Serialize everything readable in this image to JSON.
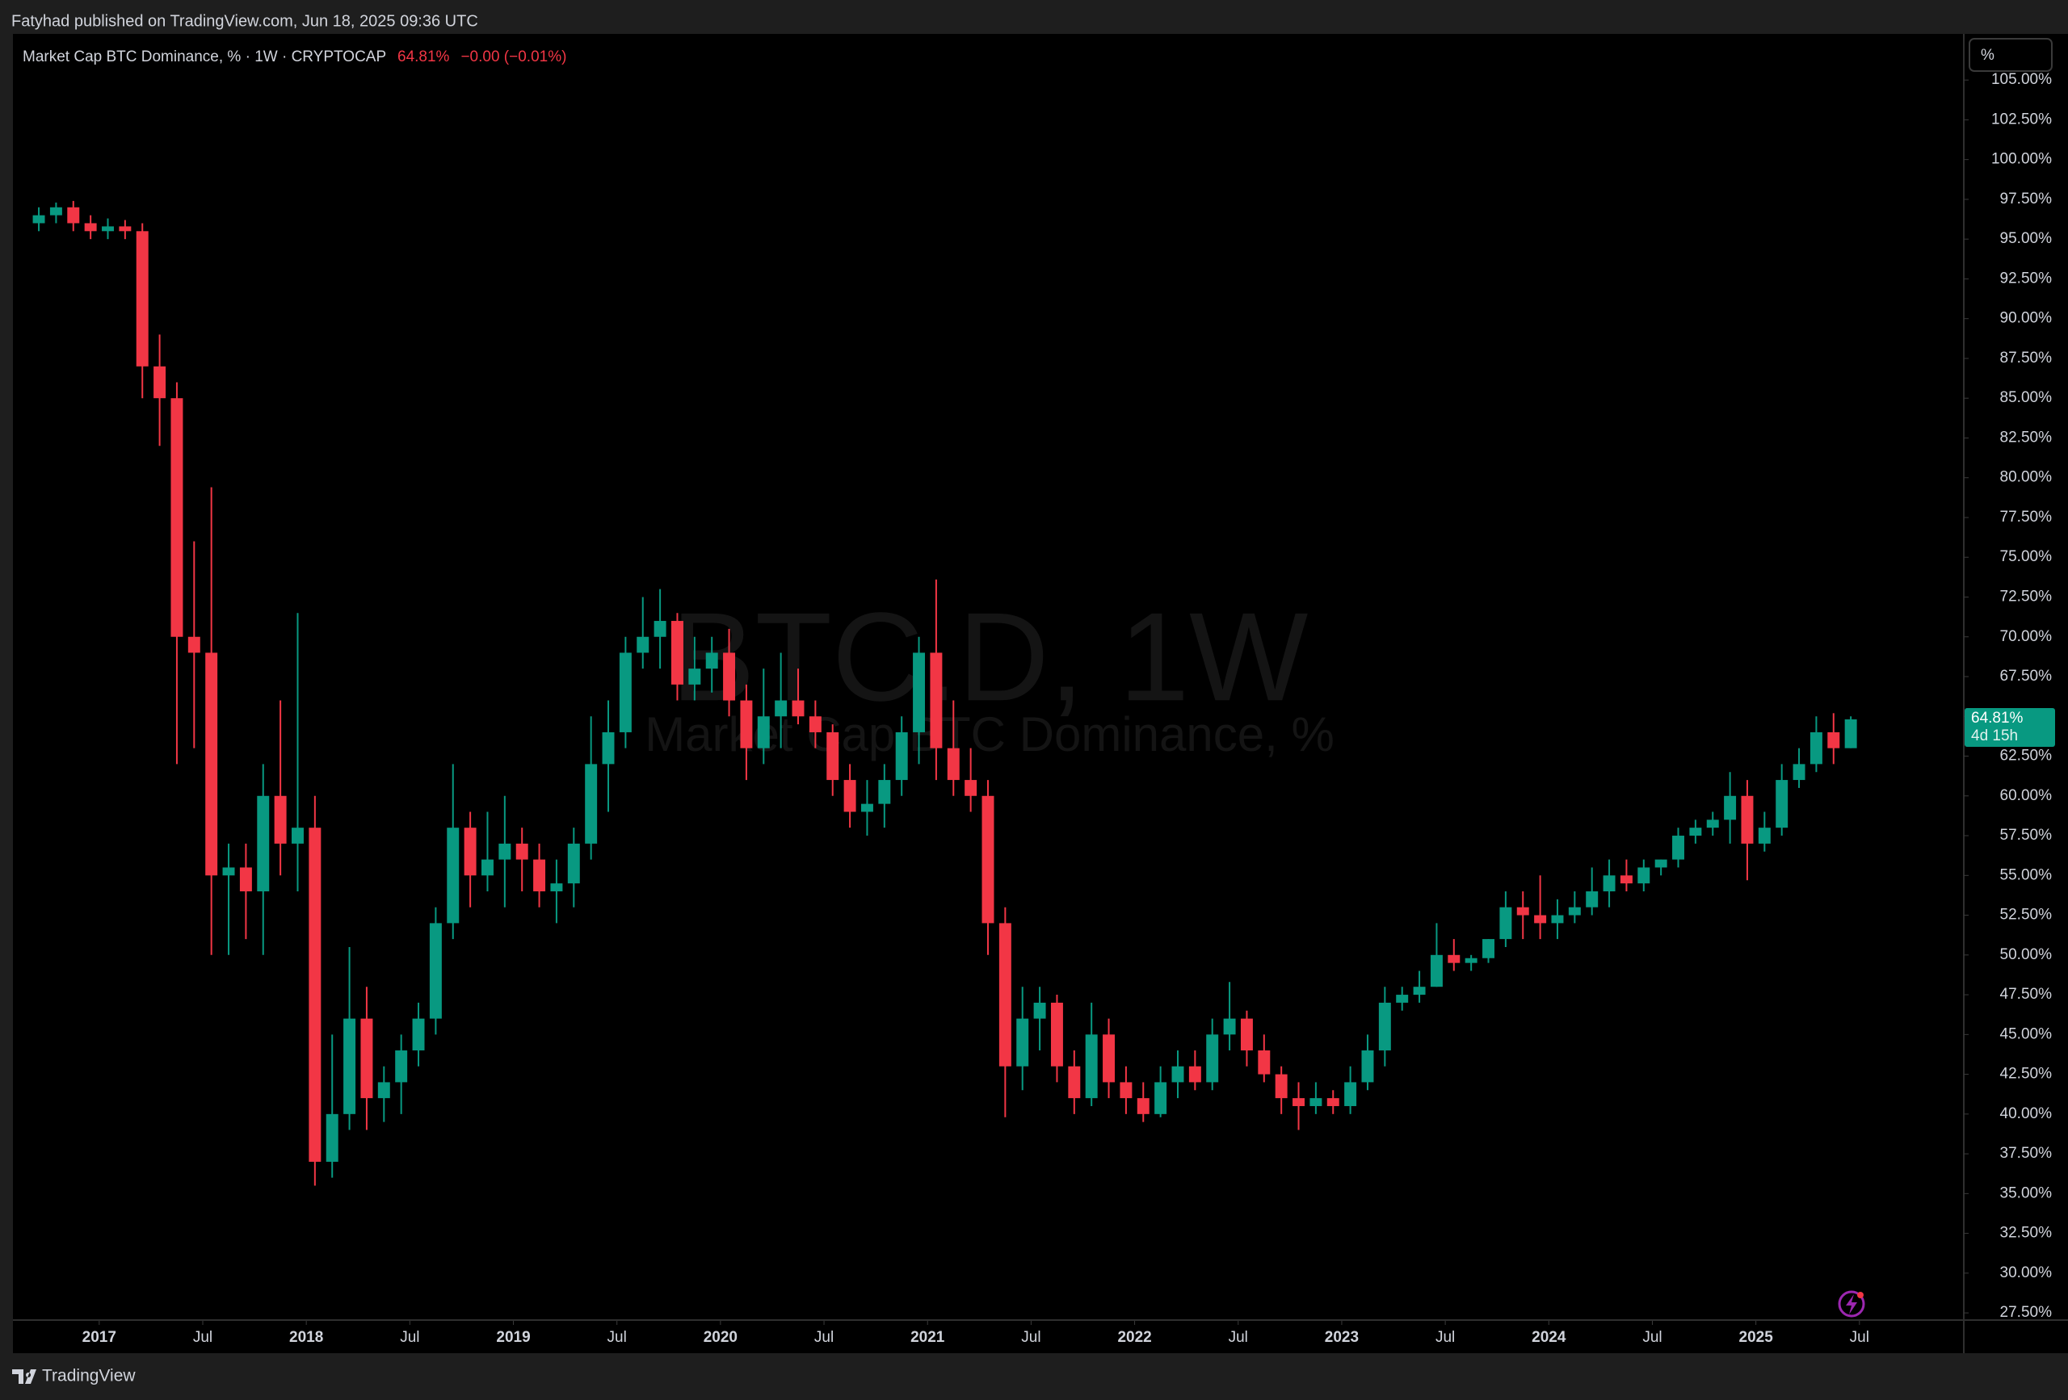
{
  "header": "Fatyhad published on TradingView.com, Jun 18, 2025 09:36 UTC",
  "footer": "TradingView",
  "price_scale_mode": "%",
  "chart_data": {
    "type": "candlestick",
    "title": "Market Cap BTC Dominance, % · 1W · CRYPTOCAP",
    "last_value_label": "64.81%",
    "change_label": "−0.00 (−0.01%)",
    "countdown": "4d 15h",
    "watermark_symbol": "BTC.D, 1W",
    "watermark_name": "Market Cap BTC Dominance, %",
    "up_color": "#089981",
    "down_color": "#f23645",
    "x": [
      "2016-09",
      "2016-10",
      "2016-11",
      "2016-12",
      "2017-01",
      "2017-02",
      "2017-03",
      "2017-04",
      "2017-05",
      "2017-06",
      "2017-07",
      "2017-08",
      "2017-09",
      "2017-10",
      "2017-11",
      "2017-12",
      "2018-01",
      "2018-02",
      "2018-03",
      "2018-04",
      "2018-05",
      "2018-06",
      "2018-07",
      "2018-08",
      "2018-09",
      "2018-10",
      "2018-11",
      "2018-12",
      "2019-01",
      "2019-02",
      "2019-03",
      "2019-04",
      "2019-05",
      "2019-06",
      "2019-07",
      "2019-08",
      "2019-09",
      "2019-10",
      "2019-11",
      "2019-12",
      "2020-01",
      "2020-02",
      "2020-03",
      "2020-04",
      "2020-05",
      "2020-06",
      "2020-07",
      "2020-08",
      "2020-09",
      "2020-10",
      "2020-11",
      "2020-12",
      "2021-01",
      "2021-02",
      "2021-03",
      "2021-04",
      "2021-05",
      "2021-06",
      "2021-07",
      "2021-08",
      "2021-09",
      "2021-10",
      "2021-11",
      "2021-12",
      "2022-01",
      "2022-02",
      "2022-03",
      "2022-04",
      "2022-05",
      "2022-06",
      "2022-07",
      "2022-08",
      "2022-09",
      "2022-10",
      "2022-11",
      "2022-12",
      "2023-01",
      "2023-02",
      "2023-03",
      "2023-04",
      "2023-05",
      "2023-06",
      "2023-07",
      "2023-08",
      "2023-09",
      "2023-10",
      "2023-11",
      "2023-12",
      "2024-01",
      "2024-02",
      "2024-03",
      "2024-04",
      "2024-05",
      "2024-06",
      "2024-07",
      "2024-08",
      "2024-09",
      "2024-10",
      "2024-11",
      "2024-12",
      "2025-01",
      "2025-02",
      "2025-03",
      "2025-04",
      "2025-05",
      "2025-06"
    ],
    "open": [
      96,
      96.5,
      97,
      96,
      95.5,
      95.8,
      95.5,
      87,
      85,
      70,
      69,
      55,
      55.5,
      54,
      60,
      57,
      58,
      37,
      40,
      46,
      41,
      42,
      44,
      46,
      52,
      58,
      55,
      56,
      57,
      56,
      54,
      54.5,
      57,
      62,
      64,
      69,
      70,
      71,
      67,
      68,
      69,
      66,
      63,
      65,
      66,
      65,
      64,
      61,
      59,
      59.5,
      61,
      64,
      69,
      63,
      61,
      60,
      52,
      43,
      46,
      47,
      43,
      41,
      45,
      42,
      41,
      40,
      42,
      43,
      42,
      45,
      46,
      44,
      42.5,
      41,
      40.5,
      41,
      40.5,
      42,
      44,
      47,
      47.5,
      48,
      50,
      49.5,
      49.8,
      51,
      53,
      52.5,
      52,
      52.5,
      53,
      54,
      55,
      54.5,
      55.5,
      56,
      57.5,
      58,
      58.5,
      60,
      57,
      58,
      61,
      62,
      64,
      63
    ],
    "high": [
      97,
      97.3,
      97.4,
      96.5,
      96.3,
      96.2,
      96,
      89,
      86,
      76,
      79.4,
      57,
      57,
      62,
      66,
      71.5,
      60,
      45,
      50.5,
      48,
      43,
      45,
      47,
      53,
      62,
      59,
      59,
      60,
      58,
      57,
      56,
      58,
      65,
      66,
      70,
      72.5,
      73,
      71.5,
      70,
      70,
      70.5,
      67,
      68,
      69,
      68,
      66,
      64.5,
      62,
      61,
      62,
      65,
      70,
      73.6,
      66,
      63,
      61,
      53,
      48,
      48,
      47.5,
      44,
      47,
      46,
      43,
      42,
      43,
      44,
      44,
      46,
      48.3,
      46.5,
      45,
      43,
      42,
      42,
      41.5,
      43,
      45,
      48,
      48,
      49,
      52,
      51,
      50,
      51,
      54,
      54,
      55,
      53.5,
      54,
      55.5,
      56,
      56,
      56,
      56,
      58,
      58.5,
      59,
      61.5,
      61,
      59,
      62,
      63,
      65,
      65.2,
      65
    ],
    "low": [
      95.5,
      96,
      95.5,
      95,
      95,
      95,
      85,
      82,
      62,
      63,
      50,
      50,
      51,
      50,
      55,
      54,
      35.5,
      36,
      39,
      39,
      39.5,
      40,
      43,
      45,
      51,
      53,
      54,
      53,
      54,
      53,
      52,
      53,
      56,
      59,
      63,
      68,
      68,
      66,
      66,
      66.5,
      65,
      61,
      62,
      63,
      64.5,
      63,
      60,
      58,
      57.5,
      58,
      60,
      62,
      61,
      60,
      59,
      50,
      39.8,
      41.5,
      44,
      42,
      40,
      40.5,
      41,
      40,
      39.5,
      39.8,
      41,
      41.5,
      41.5,
      44,
      43,
      42,
      40,
      39,
      40,
      40,
      40,
      41.5,
      43,
      46.5,
      47,
      48,
      49,
      49,
      49.5,
      50.5,
      51,
      51,
      51,
      52,
      52.5,
      53,
      54,
      54,
      55,
      55.5,
      57,
      57.5,
      57,
      54.7,
      56.5,
      57.5,
      60.5,
      61.5,
      62,
      63
    ],
    "close": [
      96.5,
      97,
      96,
      95.5,
      95.8,
      95.5,
      87,
      85,
      70,
      69,
      55,
      55.5,
      54,
      60,
      57,
      58,
      37,
      40,
      46,
      41,
      42,
      44,
      46,
      52,
      58,
      55,
      56,
      57,
      56,
      54,
      54.5,
      57,
      62,
      64,
      69,
      70,
      71,
      67,
      68,
      69,
      66,
      63,
      65,
      66,
      65,
      64,
      61,
      59,
      59.5,
      61,
      64,
      69,
      63,
      61,
      60,
      52,
      43,
      46,
      47,
      43,
      41,
      45,
      42,
      41,
      40,
      42,
      43,
      42,
      45,
      46,
      44,
      42.5,
      41,
      40.5,
      41,
      40.5,
      42,
      44,
      47,
      47.5,
      48,
      50,
      49.5,
      49.8,
      51,
      53,
      52.5,
      52,
      52.5,
      53,
      54,
      55,
      54.5,
      55.5,
      56,
      57.5,
      58,
      58.5,
      60,
      57,
      58,
      61,
      62,
      64,
      63,
      64.81
    ],
    "xlim": [
      "2016-08",
      "2026-01"
    ],
    "xticks": [
      {
        "value": "2017-01",
        "label": "2017"
      },
      {
        "value": "2017-07",
        "label": "Jul"
      },
      {
        "value": "2018-01",
        "label": "2018"
      },
      {
        "value": "2018-07",
        "label": "Jul"
      },
      {
        "value": "2019-01",
        "label": "2019"
      },
      {
        "value": "2019-07",
        "label": "Jul"
      },
      {
        "value": "2020-01",
        "label": "2020"
      },
      {
        "value": "2020-07",
        "label": "Jul"
      },
      {
        "value": "2021-01",
        "label": "2021"
      },
      {
        "value": "2021-07",
        "label": "Jul"
      },
      {
        "value": "2022-01",
        "label": "2022"
      },
      {
        "value": "2022-07",
        "label": "Jul"
      },
      {
        "value": "2023-01",
        "label": "2023"
      },
      {
        "value": "2023-07",
        "label": "Jul"
      },
      {
        "value": "2024-01",
        "label": "2024"
      },
      {
        "value": "2024-07",
        "label": "Jul"
      },
      {
        "value": "2025-01",
        "label": "2025"
      },
      {
        "value": "2025-07",
        "label": "Jul"
      }
    ],
    "ylim": [
      27.1,
      107.9
    ],
    "yticks": [
      {
        "value": 27.5,
        "label": "27.50%"
      },
      {
        "value": 30,
        "label": "30.00%"
      },
      {
        "value": 32.5,
        "label": "32.50%"
      },
      {
        "value": 35,
        "label": "35.00%"
      },
      {
        "value": 37.5,
        "label": "37.50%"
      },
      {
        "value": 40,
        "label": "40.00%"
      },
      {
        "value": 42.5,
        "label": "42.50%"
      },
      {
        "value": 45,
        "label": "45.00%"
      },
      {
        "value": 47.5,
        "label": "47.50%"
      },
      {
        "value": 50,
        "label": "50.00%"
      },
      {
        "value": 52.5,
        "label": "52.50%"
      },
      {
        "value": 55,
        "label": "55.00%"
      },
      {
        "value": 57.5,
        "label": "57.50%"
      },
      {
        "value": 60,
        "label": "60.00%"
      },
      {
        "value": 62.5,
        "label": "62.50%"
      },
      {
        "value": 65,
        "label": "65.00%"
      },
      {
        "value": 67.5,
        "label": "67.50%"
      },
      {
        "value": 70,
        "label": "70.00%"
      },
      {
        "value": 72.5,
        "label": "72.50%"
      },
      {
        "value": 75,
        "label": "75.00%"
      },
      {
        "value": 77.5,
        "label": "77.50%"
      },
      {
        "value": 80,
        "label": "80.00%"
      },
      {
        "value": 82.5,
        "label": "82.50%"
      },
      {
        "value": 85,
        "label": "85.00%"
      },
      {
        "value": 87.5,
        "label": "87.50%"
      },
      {
        "value": 90,
        "label": "90.00%"
      },
      {
        "value": 92.5,
        "label": "92.50%"
      },
      {
        "value": 95,
        "label": "95.00%"
      },
      {
        "value": 97.5,
        "label": "97.50%"
      },
      {
        "value": 100,
        "label": "100.00%"
      },
      {
        "value": 102.5,
        "label": "102.50%"
      },
      {
        "value": 105,
        "label": "105.00%"
      }
    ],
    "grid": false
  }
}
